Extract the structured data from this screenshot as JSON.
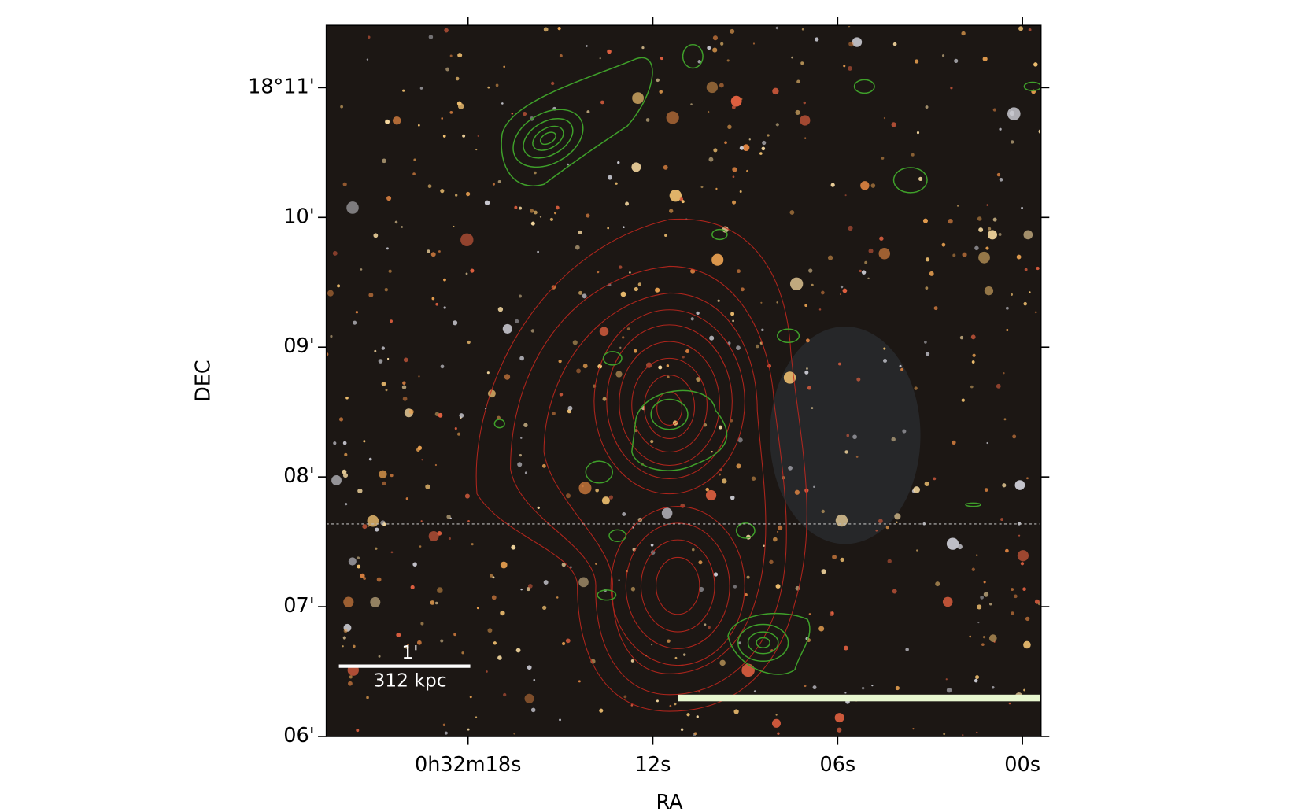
{
  "chart_data": {
    "type": "image",
    "xlabel": "RA",
    "ylabel": "DEC",
    "xlim": [
      22.6,
      -0.6
    ],
    "xticks": [
      {
        "value": 18,
        "label": "0h32m18s"
      },
      {
        "value": 12,
        "label": "12s"
      },
      {
        "value": 6,
        "label": "06s"
      },
      {
        "value": 0,
        "label": "00s"
      }
    ],
    "ylim": [
      6,
      11.48
    ],
    "yticks": [
      {
        "value": 11,
        "label": "18°11'"
      },
      {
        "value": 10,
        "label": "10'"
      },
      {
        "value": 9,
        "label": "09'"
      },
      {
        "value": 8,
        "label": "08'"
      },
      {
        "value": 7,
        "label": "07'"
      },
      {
        "value": 6,
        "label": "06'"
      }
    ],
    "scale_bar": {
      "angle": "1'",
      "distance": "312 kpc"
    }
  }
}
